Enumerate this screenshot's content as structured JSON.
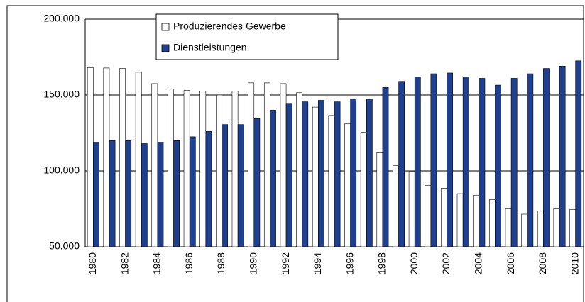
{
  "chart_data": {
    "type": "bar",
    "categories": [
      "1980",
      null,
      "1982",
      null,
      "1984",
      null,
      "1986",
      null,
      "1988",
      null,
      "1990",
      null,
      "1992",
      null,
      "1994",
      null,
      "1996",
      null,
      "1998",
      null,
      "2000",
      null,
      "2002",
      null,
      "2004",
      null,
      "2006",
      null,
      "2008",
      null,
      "2010"
    ],
    "series": [
      {
        "name": "Produzierendes Gewerbe",
        "color": "#ffffff",
        "values": [
          168000,
          167800,
          167500,
          165000,
          157500,
          154000,
          153000,
          152500,
          150000,
          152500,
          158000,
          158000,
          157500,
          151500,
          142000,
          136500,
          131000,
          125500,
          112000,
          103500,
          99500,
          90500,
          88500,
          85000,
          84000,
          81000,
          75000,
          71500,
          73500,
          75000,
          74500
        ]
      },
      {
        "name": "Dienstleistungen",
        "color": "#1f3f8f",
        "values": [
          119000,
          120000,
          120000,
          118000,
          119000,
          120000,
          122500,
          126000,
          130500,
          130500,
          134500,
          140000,
          144500,
          145500,
          146500,
          145500,
          147500,
          147500,
          155000,
          159000,
          162000,
          164000,
          164500,
          162000,
          161000,
          156500,
          161000,
          164000,
          167500,
          169000,
          172500
        ]
      }
    ],
    "ylim": [
      50000,
      200000
    ],
    "yticks": [
      {
        "value": 50000,
        "label": "50.000"
      },
      {
        "value": 100000,
        "label": "100.000"
      },
      {
        "value": 150000,
        "label": "150.000"
      },
      {
        "value": 200000,
        "label": "200.000"
      }
    ],
    "grid": true,
    "legend": "top-left"
  }
}
